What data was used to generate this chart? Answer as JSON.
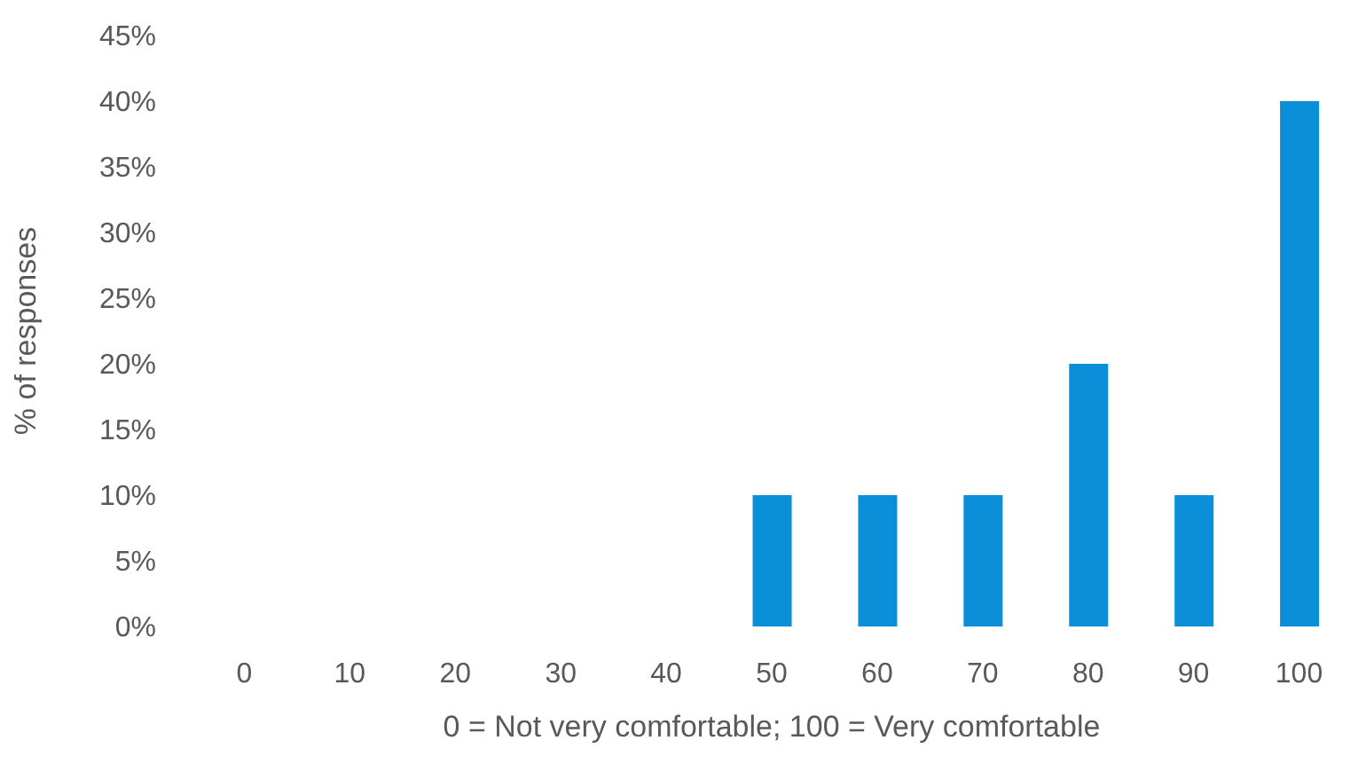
{
  "chart_data": {
    "type": "bar",
    "xlabel": "0 = Not very comfortable; 100 = Very comfortable",
    "ylabel": "% of responses",
    "categories": [
      "0",
      "10",
      "20",
      "30",
      "40",
      "50",
      "60",
      "70",
      "80",
      "90",
      "100"
    ],
    "values": [
      0,
      0,
      0,
      0,
      0,
      10,
      10,
      10,
      20,
      10,
      40
    ],
    "color": "#0a8fd8",
    "ylim": [
      0,
      45
    ],
    "yticks": [
      {
        "value": 0,
        "label": "0%"
      },
      {
        "value": 5,
        "label": "5%"
      },
      {
        "value": 10,
        "label": "10%"
      },
      {
        "value": 15,
        "label": "15%"
      },
      {
        "value": 20,
        "label": "20%"
      },
      {
        "value": 25,
        "label": "25%"
      },
      {
        "value": 30,
        "label": "30%"
      },
      {
        "value": 35,
        "label": "35%"
      },
      {
        "value": 40,
        "label": "40%"
      },
      {
        "value": 45,
        "label": "45%"
      }
    ],
    "grid": false
  }
}
